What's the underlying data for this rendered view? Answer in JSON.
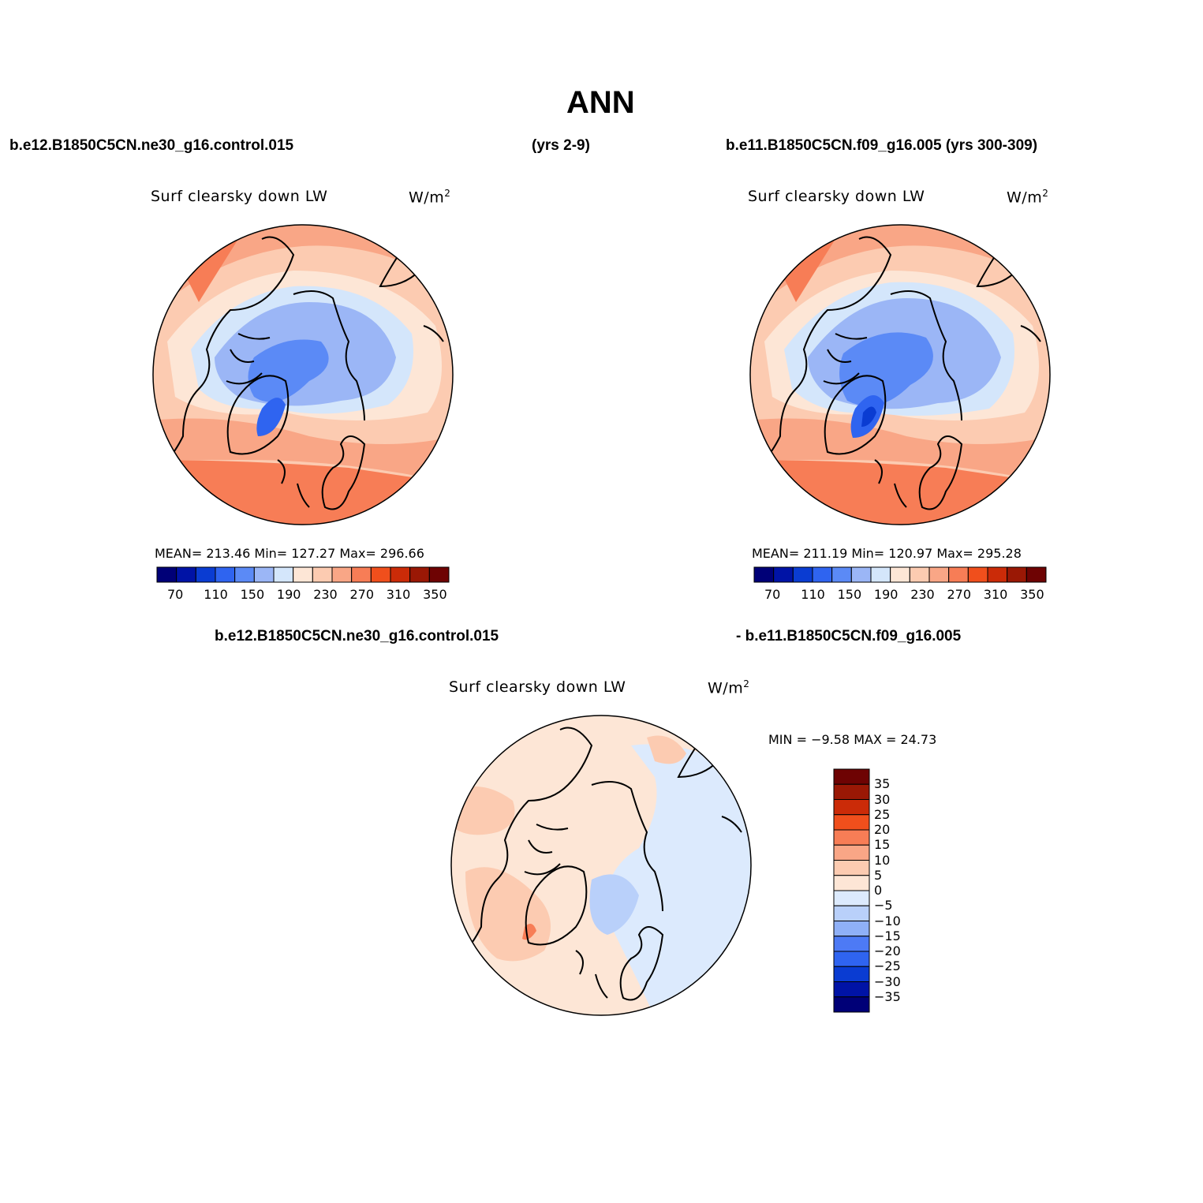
{
  "title": "ANN",
  "case1": "b.e12.B1850C5CN.ne30_g16.control.015",
  "case1_years": "(yrs 2-9)",
  "case2": "b.e11.B1850C5CN.f09_g16.005 (yrs 300-309)",
  "diff_case1": "b.e12.B1850C5CN.ne30_g16.control.015",
  "diff_case2": "- b.e11.B1850C5CN.f09_g16.005",
  "colors": {
    "abs_fill": [
      "#000077",
      "#0013a6",
      "#0a3cd2",
      "#2f64f0",
      "#5b8af6",
      "#9bb6f6",
      "#d4e6fb",
      "#fde6d6",
      "#fccbb1",
      "#f9a686",
      "#f77d56",
      "#f04f1c",
      "#cb2b08",
      "#9a1805",
      "#6e0303"
    ],
    "diff_fill": [
      "#000077",
      "#0013a6",
      "#0a3cd2",
      "#2f64f0",
      "#4d7af5",
      "#8fb0f7",
      "#b9d0fa",
      "#dceafd",
      "#fde6d6",
      "#fccbb1",
      "#f9a686",
      "#f77d56",
      "#f04f1c",
      "#cb2b08",
      "#9a1805",
      "#6e0303"
    ]
  },
  "panels": [
    {
      "variable": "Surf clearsky down LW",
      "units": "W/m",
      "units_sup": "2",
      "stats": "MEAN= 213.46   Min= 127.27   Max= 296.66",
      "colorbar_labels": [
        "70",
        "110",
        "150",
        "190",
        "230",
        "270",
        "310",
        "350"
      ]
    },
    {
      "variable": "Surf clearsky down LW",
      "units": "W/m",
      "units_sup": "2",
      "stats": "MEAN= 211.19   Min= 120.97   Max= 295.28",
      "colorbar_labels": [
        "70",
        "110",
        "150",
        "190",
        "230",
        "270",
        "310",
        "350"
      ]
    },
    {
      "variable": "Surf clearsky down LW",
      "units": "W/m",
      "units_sup": "2",
      "stats": "MIN =   −9.58  MAX =   24.73",
      "colorbar_labels": [
        "35",
        "30",
        "25",
        "20",
        "15",
        "10",
        "5",
        "0",
        "−5",
        "−10",
        "−15",
        "−20",
        "−25",
        "−30",
        "−35"
      ]
    }
  ]
}
